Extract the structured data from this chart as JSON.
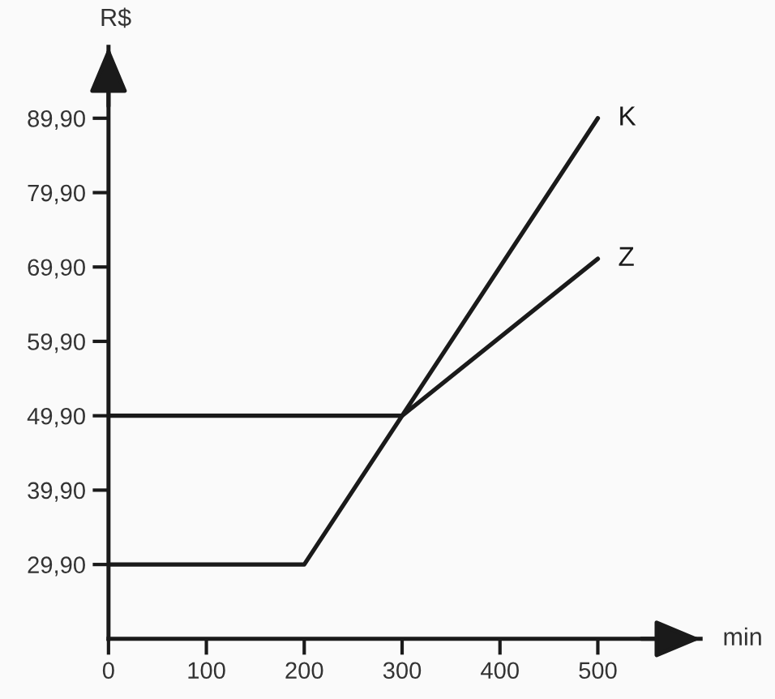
{
  "chart_data": {
    "type": "line",
    "xlabel": "min",
    "ylabel": "R$",
    "xlim": [
      0,
      605
    ],
    "ylim": [
      19.9,
      99.5
    ],
    "xticks": [
      0,
      100,
      200,
      300,
      400,
      500
    ],
    "yticks": [
      {
        "value": 29.9,
        "label": "29,90"
      },
      {
        "value": 39.9,
        "label": "39,90"
      },
      {
        "value": 49.9,
        "label": "49,90"
      },
      {
        "value": 59.9,
        "label": "59,90"
      },
      {
        "value": 69.9,
        "label": "69,90"
      },
      {
        "value": 79.9,
        "label": "79,90"
      },
      {
        "value": 89.9,
        "label": "89,90"
      }
    ],
    "series": [
      {
        "name": "K",
        "color": "#1a1a1a",
        "x": [
          0,
          200,
          500
        ],
        "values": [
          29.9,
          29.9,
          89.9
        ]
      },
      {
        "name": "Z",
        "color": "#1a1a1a",
        "x": [
          0,
          300,
          500
        ],
        "values": [
          49.9,
          49.9,
          71
        ]
      }
    ],
    "line_style": "solid"
  }
}
